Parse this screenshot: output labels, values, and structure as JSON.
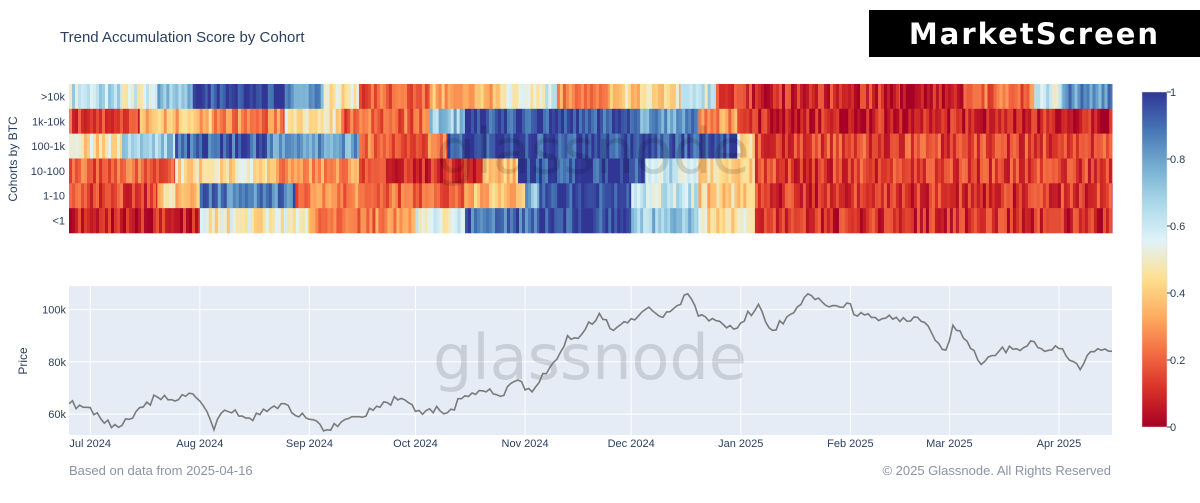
{
  "header": {
    "brand": "MarketScreen"
  },
  "footer": {
    "left": "Based on data from 2025-04-16",
    "right": "© 2025 Glassnode. All Rights Reserved"
  },
  "watermark": "glassnode",
  "chart_data": {
    "title": "Trend Accumulation Score by Cohort",
    "heatmap": {
      "type": "heatmap",
      "ylabel": "Cohorts by BTC",
      "cohorts": [
        ">10k",
        "1k-10k",
        "100-1k",
        "10-100",
        "1-10",
        "<1"
      ],
      "x_start": "2024-06-25",
      "x_end": "2025-04-16",
      "colorscale": {
        "min": 0,
        "max": 1,
        "ticks": [
          "0",
          "0.2",
          "0.4",
          "0.6",
          "0.8",
          "1"
        ],
        "colors": [
          "#a50026",
          "#d73027",
          "#f46d43",
          "#fdae61",
          "#fee090",
          "#e0f3f8",
          "#abd9e9",
          "#74add1",
          "#4575b4",
          "#313695"
        ]
      },
      "rows": [
        {
          "cohort": ">10k",
          "segments": [
            {
              "start": "2024-06-25",
              "end": "2024-07-10",
              "score": 0.62
            },
            {
              "start": "2024-07-10",
              "end": "2024-07-20",
              "score": 0.55
            },
            {
              "start": "2024-07-20",
              "end": "2024-07-30",
              "score": 0.72
            },
            {
              "start": "2024-07-30",
              "end": "2024-08-25",
              "score": 0.97
            },
            {
              "start": "2024-08-25",
              "end": "2024-09-05",
              "score": 0.82
            },
            {
              "start": "2024-09-05",
              "end": "2024-09-15",
              "score": 0.45
            },
            {
              "start": "2024-09-15",
              "end": "2024-10-05",
              "score": 0.18
            },
            {
              "start": "2024-10-05",
              "end": "2024-10-25",
              "score": 0.32
            },
            {
              "start": "2024-10-25",
              "end": "2024-11-10",
              "score": 0.55
            },
            {
              "start": "2024-11-10",
              "end": "2024-11-25",
              "score": 0.28
            },
            {
              "start": "2024-11-25",
              "end": "2024-12-15",
              "score": 0.42
            },
            {
              "start": "2024-12-15",
              "end": "2024-12-25",
              "score": 0.6
            },
            {
              "start": "2024-12-25",
              "end": "2025-02-15",
              "score": 0.1
            },
            {
              "start": "2025-02-15",
              "end": "2025-03-05",
              "score": 0.05
            },
            {
              "start": "2025-03-05",
              "end": "2025-03-25",
              "score": 0.22
            },
            {
              "start": "2025-03-25",
              "end": "2025-04-02",
              "score": 0.6
            },
            {
              "start": "2025-04-02",
              "end": "2025-04-16",
              "score": 0.82
            }
          ]
        },
        {
          "cohort": "1k-10k",
          "segments": [
            {
              "start": "2024-06-25",
              "end": "2024-07-15",
              "score": 0.15
            },
            {
              "start": "2024-07-15",
              "end": "2024-08-05",
              "score": 0.35
            },
            {
              "start": "2024-08-05",
              "end": "2024-08-25",
              "score": 0.25
            },
            {
              "start": "2024-08-25",
              "end": "2024-09-10",
              "score": 0.45
            },
            {
              "start": "2024-09-10",
              "end": "2024-10-05",
              "score": 0.2
            },
            {
              "start": "2024-10-05",
              "end": "2024-10-15",
              "score": 0.72
            },
            {
              "start": "2024-10-15",
              "end": "2024-12-01",
              "score": 0.95
            },
            {
              "start": "2024-12-01",
              "end": "2024-12-20",
              "score": 0.82
            },
            {
              "start": "2024-12-20",
              "end": "2024-12-31",
              "score": 0.3
            },
            {
              "start": "2024-12-31",
              "end": "2025-04-16",
              "score": 0.08
            }
          ]
        },
        {
          "cohort": "100-1k",
          "segments": [
            {
              "start": "2024-06-25",
              "end": "2024-07-10",
              "score": 0.45
            },
            {
              "start": "2024-07-10",
              "end": "2024-07-25",
              "score": 0.7
            },
            {
              "start": "2024-07-25",
              "end": "2024-08-20",
              "score": 0.93
            },
            {
              "start": "2024-08-20",
              "end": "2024-09-15",
              "score": 0.8
            },
            {
              "start": "2024-09-15",
              "end": "2024-10-10",
              "score": 0.22
            },
            {
              "start": "2024-10-10",
              "end": "2024-12-31",
              "score": 0.95
            },
            {
              "start": "2024-12-31",
              "end": "2025-01-05",
              "score": 0.45
            },
            {
              "start": "2025-01-05",
              "end": "2025-04-16",
              "score": 0.15
            }
          ]
        },
        {
          "cohort": "10-100",
          "segments": [
            {
              "start": "2024-06-25",
              "end": "2024-07-25",
              "score": 0.2
            },
            {
              "start": "2024-07-25",
              "end": "2024-08-20",
              "score": 0.45
            },
            {
              "start": "2024-08-20",
              "end": "2024-09-15",
              "score": 0.3
            },
            {
              "start": "2024-09-15",
              "end": "2024-10-20",
              "score": 0.12
            },
            {
              "start": "2024-10-20",
              "end": "2024-10-30",
              "score": 0.35
            },
            {
              "start": "2024-10-30",
              "end": "2024-12-05",
              "score": 0.96
            },
            {
              "start": "2024-12-05",
              "end": "2024-12-20",
              "score": 0.62
            },
            {
              "start": "2024-12-20",
              "end": "2025-01-05",
              "score": 0.4
            },
            {
              "start": "2025-01-05",
              "end": "2025-04-16",
              "score": 0.14
            }
          ]
        },
        {
          "cohort": "1-10",
          "segments": [
            {
              "start": "2024-06-25",
              "end": "2024-07-20",
              "score": 0.15
            },
            {
              "start": "2024-07-20",
              "end": "2024-08-01",
              "score": 0.4
            },
            {
              "start": "2024-08-01",
              "end": "2024-08-28",
              "score": 0.88
            },
            {
              "start": "2024-08-28",
              "end": "2024-09-15",
              "score": 0.25
            },
            {
              "start": "2024-09-15",
              "end": "2024-10-15",
              "score": 0.2
            },
            {
              "start": "2024-10-15",
              "end": "2024-11-01",
              "score": 0.35
            },
            {
              "start": "2024-11-01",
              "end": "2024-11-05",
              "score": 0.75
            },
            {
              "start": "2024-11-05",
              "end": "2024-12-01",
              "score": 0.97
            },
            {
              "start": "2024-12-01",
              "end": "2024-12-20",
              "score": 0.6
            },
            {
              "start": "2024-12-20",
              "end": "2025-01-05",
              "score": 0.4
            },
            {
              "start": "2025-01-05",
              "end": "2025-04-16",
              "score": 0.12
            }
          ]
        },
        {
          "cohort": "<1",
          "segments": [
            {
              "start": "2024-06-25",
              "end": "2024-08-01",
              "score": 0.08
            },
            {
              "start": "2024-08-01",
              "end": "2024-09-01",
              "score": 0.48
            },
            {
              "start": "2024-09-01",
              "end": "2024-10-01",
              "score": 0.25
            },
            {
              "start": "2024-10-01",
              "end": "2024-10-15",
              "score": 0.55
            },
            {
              "start": "2024-10-15",
              "end": "2024-11-05",
              "score": 0.9
            },
            {
              "start": "2024-11-05",
              "end": "2024-12-01",
              "score": 0.97
            },
            {
              "start": "2024-12-01",
              "end": "2024-12-20",
              "score": 0.7
            },
            {
              "start": "2024-12-20",
              "end": "2025-01-05",
              "score": 0.45
            },
            {
              "start": "2025-01-05",
              "end": "2025-04-16",
              "score": 0.1
            }
          ]
        }
      ]
    },
    "price": {
      "type": "line",
      "ylabel": "Price",
      "yticks": [
        60000,
        80000,
        100000
      ],
      "ytick_labels": [
        "60k",
        "80k",
        "100k"
      ],
      "ylim": [
        52000,
        109000
      ],
      "xticks": [
        "2024-07-01",
        "2024-08-01",
        "2024-09-01",
        "2024-10-01",
        "2024-11-01",
        "2024-12-01",
        "2025-01-01",
        "2025-02-01",
        "2025-03-01",
        "2025-04-01"
      ],
      "xtick_labels": [
        "Jul 2024",
        "Aug 2024",
        "Sep 2024",
        "Oct 2024",
        "Nov 2024",
        "Dec 2024",
        "Jan 2025",
        "Feb 2025",
        "Mar 2025",
        "Apr 2025"
      ],
      "x_start": "2024-06-25",
      "x_end": "2025-04-16",
      "line_color": "#7a7a7a",
      "points": [
        {
          "date": "2024-06-25",
          "value": 64000
        },
        {
          "date": "2024-07-01",
          "value": 62500
        },
        {
          "date": "2024-07-05",
          "value": 56500
        },
        {
          "date": "2024-07-08",
          "value": 56000
        },
        {
          "date": "2024-07-12",
          "value": 58000
        },
        {
          "date": "2024-07-15",
          "value": 62500
        },
        {
          "date": "2024-07-20",
          "value": 66500
        },
        {
          "date": "2024-07-25",
          "value": 65000
        },
        {
          "date": "2024-07-29",
          "value": 68000
        },
        {
          "date": "2024-08-01",
          "value": 65000
        },
        {
          "date": "2024-08-03",
          "value": 61000
        },
        {
          "date": "2024-08-05",
          "value": 54000
        },
        {
          "date": "2024-08-08",
          "value": 61500
        },
        {
          "date": "2024-08-15",
          "value": 58500
        },
        {
          "date": "2024-08-20",
          "value": 61000
        },
        {
          "date": "2024-08-25",
          "value": 64000
        },
        {
          "date": "2024-08-28",
          "value": 59500
        },
        {
          "date": "2024-09-01",
          "value": 58000
        },
        {
          "date": "2024-09-06",
          "value": 54000
        },
        {
          "date": "2024-09-10",
          "value": 57000
        },
        {
          "date": "2024-09-15",
          "value": 59000
        },
        {
          "date": "2024-09-20",
          "value": 63000
        },
        {
          "date": "2024-09-27",
          "value": 66000
        },
        {
          "date": "2024-10-01",
          "value": 61000
        },
        {
          "date": "2024-10-05",
          "value": 62000
        },
        {
          "date": "2024-10-10",
          "value": 60500
        },
        {
          "date": "2024-10-15",
          "value": 67000
        },
        {
          "date": "2024-10-21",
          "value": 68500
        },
        {
          "date": "2024-10-25",
          "value": 66800
        },
        {
          "date": "2024-10-29",
          "value": 72500
        },
        {
          "date": "2024-11-03",
          "value": 68500
        },
        {
          "date": "2024-11-06",
          "value": 75500
        },
        {
          "date": "2024-11-10",
          "value": 81000
        },
        {
          "date": "2024-11-13",
          "value": 90000
        },
        {
          "date": "2024-11-17",
          "value": 90500
        },
        {
          "date": "2024-11-22",
          "value": 98500
        },
        {
          "date": "2024-11-26",
          "value": 92000
        },
        {
          "date": "2024-12-01",
          "value": 96500
        },
        {
          "date": "2024-12-05",
          "value": 100000
        },
        {
          "date": "2024-12-10",
          "value": 97000
        },
        {
          "date": "2024-12-17",
          "value": 106000
        },
        {
          "date": "2024-12-20",
          "value": 97500
        },
        {
          "date": "2024-12-26",
          "value": 95500
        },
        {
          "date": "2024-12-30",
          "value": 92500
        },
        {
          "date": "2025-01-06",
          "value": 102000
        },
        {
          "date": "2025-01-09",
          "value": 93000
        },
        {
          "date": "2025-01-13",
          "value": 94500
        },
        {
          "date": "2025-01-20",
          "value": 106000
        },
        {
          "date": "2025-01-27",
          "value": 101500
        },
        {
          "date": "2025-01-31",
          "value": 102500
        },
        {
          "date": "2025-02-03",
          "value": 97500
        },
        {
          "date": "2025-02-10",
          "value": 96500
        },
        {
          "date": "2025-02-20",
          "value": 97000
        },
        {
          "date": "2025-02-24",
          "value": 91000
        },
        {
          "date": "2025-02-28",
          "value": 84500
        },
        {
          "date": "2025-03-02",
          "value": 94000
        },
        {
          "date": "2025-03-05",
          "value": 89000
        },
        {
          "date": "2025-03-10",
          "value": 79000
        },
        {
          "date": "2025-03-15",
          "value": 84000
        },
        {
          "date": "2025-03-20",
          "value": 85000
        },
        {
          "date": "2025-03-24",
          "value": 88000
        },
        {
          "date": "2025-03-28",
          "value": 84000
        },
        {
          "date": "2025-04-02",
          "value": 85000
        },
        {
          "date": "2025-04-07",
          "value": 77000
        },
        {
          "date": "2025-04-09",
          "value": 82500
        },
        {
          "date": "2025-04-12",
          "value": 85000
        },
        {
          "date": "2025-04-16",
          "value": 84000
        }
      ]
    }
  }
}
